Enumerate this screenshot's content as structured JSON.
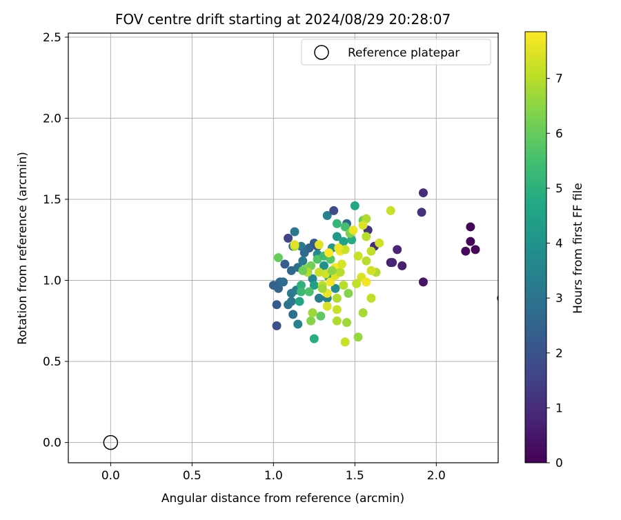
{
  "chart_data": {
    "type": "scatter",
    "title": "FOV centre drift starting at 2024/08/29 20:28:07",
    "xlabel": "Angular distance from reference (arcmin)",
    "ylabel": "Rotation from reference (arcmin)",
    "xlim": [
      -0.26,
      2.38
    ],
    "ylim": [
      -0.125,
      2.525
    ],
    "xticks": [
      "0.0",
      "0.5",
      "1.0",
      "1.5",
      "2.0"
    ],
    "yticks": [
      "0.0",
      "0.5",
      "1.0",
      "1.5",
      "2.0",
      "2.5"
    ],
    "grid": true,
    "legend": {
      "position": "top-right",
      "entries": [
        "Reference platepar"
      ]
    },
    "reference_point": {
      "x": 0.0,
      "y": 0.0,
      "marker": "open-circle"
    },
    "colorbar": {
      "label": "Hours from first FF file",
      "range": [
        0,
        7.85
      ],
      "ticks": [
        "0",
        "1",
        "2",
        "3",
        "4",
        "5",
        "6",
        "7"
      ],
      "colormap": "viridis"
    },
    "points": [
      {
        "x": 2.4,
        "y": 0.89,
        "c": 0.3
      },
      {
        "x": 2.21,
        "y": 1.33,
        "c": 0.1
      },
      {
        "x": 2.21,
        "y": 1.24,
        "c": 0.1
      },
      {
        "x": 2.18,
        "y": 1.18,
        "c": 0.2
      },
      {
        "x": 2.24,
        "y": 1.19,
        "c": 0.1
      },
      {
        "x": 1.92,
        "y": 1.54,
        "c": 1.0
      },
      {
        "x": 1.91,
        "y": 1.42,
        "c": 1.1
      },
      {
        "x": 1.92,
        "y": 0.99,
        "c": 0.4
      },
      {
        "x": 1.79,
        "y": 1.09,
        "c": 0.7
      },
      {
        "x": 1.76,
        "y": 1.19,
        "c": 0.8
      },
      {
        "x": 1.72,
        "y": 1.11,
        "c": 0.6
      },
      {
        "x": 1.73,
        "y": 1.11,
        "c": 0.8
      },
      {
        "x": 1.62,
        "y": 1.21,
        "c": 0.9
      },
      {
        "x": 1.58,
        "y": 1.31,
        "c": 1.2
      },
      {
        "x": 1.09,
        "y": 1.26,
        "c": 1.6
      },
      {
        "x": 1.02,
        "y": 0.72,
        "c": 1.9
      },
      {
        "x": 1.02,
        "y": 0.85,
        "c": 2.2
      },
      {
        "x": 1.0,
        "y": 0.97,
        "c": 2.4
      },
      {
        "x": 1.03,
        "y": 0.95,
        "c": 2.5
      },
      {
        "x": 1.04,
        "y": 0.99,
        "c": 2.6
      },
      {
        "x": 1.06,
        "y": 0.99,
        "c": 2.8
      },
      {
        "x": 1.09,
        "y": 0.85,
        "c": 3.0
      },
      {
        "x": 1.12,
        "y": 0.79,
        "c": 2.9
      },
      {
        "x": 1.11,
        "y": 0.87,
        "c": 3.1
      },
      {
        "x": 1.11,
        "y": 0.92,
        "c": 3.2
      },
      {
        "x": 1.14,
        "y": 0.94,
        "c": 3.3
      },
      {
        "x": 1.15,
        "y": 0.73,
        "c": 3.5
      },
      {
        "x": 1.13,
        "y": 1.3,
        "c": 3.1
      },
      {
        "x": 1.12,
        "y": 1.21,
        "c": 2.9
      },
      {
        "x": 1.17,
        "y": 1.21,
        "c": 3.2
      },
      {
        "x": 1.19,
        "y": 1.17,
        "c": 2.7
      },
      {
        "x": 1.22,
        "y": 1.2,
        "c": 2.5
      },
      {
        "x": 1.25,
        "y": 1.23,
        "c": 2.2
      },
      {
        "x": 1.27,
        "y": 1.21,
        "c": 2.0
      },
      {
        "x": 1.07,
        "y": 1.1,
        "c": 2.3
      },
      {
        "x": 1.11,
        "y": 1.06,
        "c": 2.6
      },
      {
        "x": 1.15,
        "y": 1.08,
        "c": 2.9
      },
      {
        "x": 1.18,
        "y": 1.12,
        "c": 3.1
      },
      {
        "x": 1.21,
        "y": 1.05,
        "c": 3.4
      },
      {
        "x": 1.24,
        "y": 1.01,
        "c": 3.6
      },
      {
        "x": 1.27,
        "y": 1.16,
        "c": 3.7
      },
      {
        "x": 1.33,
        "y": 1.4,
        "c": 3.4
      },
      {
        "x": 1.37,
        "y": 1.43,
        "c": 1.8
      },
      {
        "x": 1.45,
        "y": 1.35,
        "c": 2.6
      },
      {
        "x": 1.5,
        "y": 1.46,
        "c": 4.7
      },
      {
        "x": 1.39,
        "y": 1.27,
        "c": 4.2
      },
      {
        "x": 1.43,
        "y": 1.24,
        "c": 4.5
      },
      {
        "x": 1.48,
        "y": 1.25,
        "c": 4.8
      },
      {
        "x": 1.36,
        "y": 1.2,
        "c": 4.1
      },
      {
        "x": 1.31,
        "y": 1.09,
        "c": 3.9
      },
      {
        "x": 1.34,
        "y": 1.02,
        "c": 4.3
      },
      {
        "x": 1.38,
        "y": 0.95,
        "c": 3.8
      },
      {
        "x": 1.33,
        "y": 0.89,
        "c": 3.5
      },
      {
        "x": 1.28,
        "y": 0.89,
        "c": 3.3
      },
      {
        "x": 1.25,
        "y": 0.97,
        "c": 4.4
      },
      {
        "x": 1.16,
        "y": 0.87,
        "c": 4.6
      },
      {
        "x": 1.17,
        "y": 0.97,
        "c": 5.0
      },
      {
        "x": 1.17,
        "y": 0.93,
        "c": 5.3
      },
      {
        "x": 1.22,
        "y": 0.93,
        "c": 5.6
      },
      {
        "x": 1.25,
        "y": 0.64,
        "c": 4.9
      },
      {
        "x": 1.29,
        "y": 0.78,
        "c": 5.9
      },
      {
        "x": 1.23,
        "y": 0.75,
        "c": 6.4
      },
      {
        "x": 1.24,
        "y": 0.8,
        "c": 6.7
      },
      {
        "x": 1.03,
        "y": 1.14,
        "c": 6.0
      },
      {
        "x": 1.13,
        "y": 1.21,
        "c": 6.8
      },
      {
        "x": 1.2,
        "y": 1.07,
        "c": 6.5
      },
      {
        "x": 1.23,
        "y": 1.09,
        "c": 6.2
      },
      {
        "x": 1.27,
        "y": 1.13,
        "c": 5.7
      },
      {
        "x": 1.31,
        "y": 1.15,
        "c": 5.4
      },
      {
        "x": 1.35,
        "y": 1.13,
        "c": 5.8
      },
      {
        "x": 1.39,
        "y": 1.35,
        "c": 5.2
      },
      {
        "x": 1.44,
        "y": 1.33,
        "c": 5.5
      },
      {
        "x": 1.47,
        "y": 1.29,
        "c": 6.3
      },
      {
        "x": 1.55,
        "y": 1.37,
        "c": 6.0
      },
      {
        "x": 1.57,
        "y": 1.38,
        "c": 6.9
      },
      {
        "x": 1.55,
        "y": 1.34,
        "c": 7.4
      },
      {
        "x": 1.49,
        "y": 1.31,
        "c": 7.6
      },
      {
        "x": 1.72,
        "y": 1.43,
        "c": 7.2
      },
      {
        "x": 1.57,
        "y": 1.27,
        "c": 7.0
      },
      {
        "x": 1.65,
        "y": 1.23,
        "c": 7.3
      },
      {
        "x": 1.6,
        "y": 1.18,
        "c": 7.1
      },
      {
        "x": 1.63,
        "y": 1.05,
        "c": 6.9
      },
      {
        "x": 1.6,
        "y": 1.06,
        "c": 7.3
      },
      {
        "x": 1.57,
        "y": 1.12,
        "c": 7.0
      },
      {
        "x": 1.52,
        "y": 1.15,
        "c": 7.2
      },
      {
        "x": 1.54,
        "y": 1.02,
        "c": 7.4
      },
      {
        "x": 1.51,
        "y": 0.98,
        "c": 7.1
      },
      {
        "x": 1.57,
        "y": 0.99,
        "c": 7.7
      },
      {
        "x": 1.6,
        "y": 0.89,
        "c": 7.1
      },
      {
        "x": 1.55,
        "y": 0.8,
        "c": 6.8
      },
      {
        "x": 1.52,
        "y": 0.65,
        "c": 6.6
      },
      {
        "x": 1.44,
        "y": 0.62,
        "c": 7.2
      },
      {
        "x": 1.45,
        "y": 0.74,
        "c": 6.7
      },
      {
        "x": 1.39,
        "y": 0.75,
        "c": 6.9
      },
      {
        "x": 1.46,
        "y": 0.92,
        "c": 6.4
      },
      {
        "x": 1.43,
        "y": 0.97,
        "c": 7.0
      },
      {
        "x": 1.39,
        "y": 0.89,
        "c": 6.9
      },
      {
        "x": 1.39,
        "y": 0.82,
        "c": 7.2
      },
      {
        "x": 1.33,
        "y": 0.84,
        "c": 7.4
      },
      {
        "x": 1.33,
        "y": 0.92,
        "c": 7.6
      },
      {
        "x": 1.3,
        "y": 0.97,
        "c": 7.1
      },
      {
        "x": 1.32,
        "y": 1.04,
        "c": 7.3
      },
      {
        "x": 1.35,
        "y": 0.99,
        "c": 7.7
      },
      {
        "x": 1.38,
        "y": 1.03,
        "c": 7.5
      },
      {
        "x": 1.38,
        "y": 1.08,
        "c": 7.8
      },
      {
        "x": 1.41,
        "y": 1.05,
        "c": 7.0
      },
      {
        "x": 1.42,
        "y": 1.1,
        "c": 7.4
      },
      {
        "x": 1.41,
        "y": 1.18,
        "c": 7.7
      },
      {
        "x": 1.44,
        "y": 1.19,
        "c": 7.2
      },
      {
        "x": 1.4,
        "y": 1.2,
        "c": 7.6
      },
      {
        "x": 1.34,
        "y": 1.17,
        "c": 7.8
      },
      {
        "x": 1.28,
        "y": 1.22,
        "c": 7.5
      },
      {
        "x": 1.28,
        "y": 1.05,
        "c": 7.2
      },
      {
        "x": 1.21,
        "y": 1.05,
        "c": 6.9
      },
      {
        "x": 1.13,
        "y": 1.22,
        "c": 7.5
      },
      {
        "x": 1.3,
        "y": 0.95,
        "c": 6.7
      },
      {
        "x": 1.36,
        "y": 1.06,
        "c": 6.5
      },
      {
        "x": 1.18,
        "y": 1.06,
        "c": 6.1
      }
    ]
  }
}
